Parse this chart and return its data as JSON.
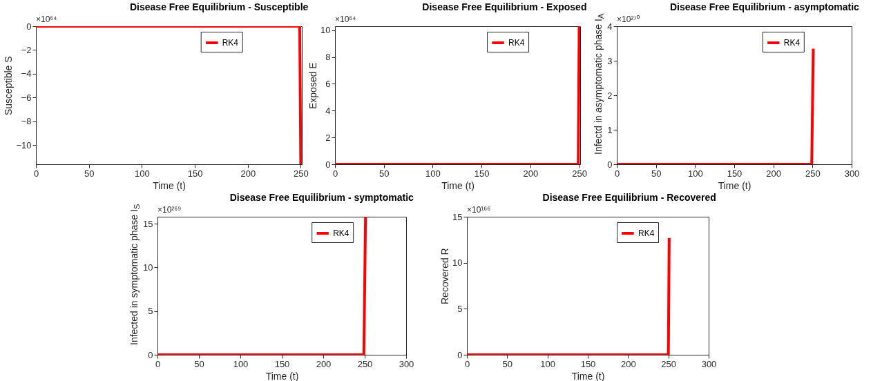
{
  "chart_data": [
    {
      "type": "line",
      "title": "Disease Free Equilibrium - Susceptible",
      "xlabel": "Time (t)",
      "ylabel": "Susceptible S",
      "annotations": [
        "×10⁶⁴"
      ],
      "x": [
        0,
        249,
        250
      ],
      "series": [
        {
          "name": "RK4",
          "color": "#ff0000",
          "values": [
            0,
            0,
            -11.6
          ]
        }
      ],
      "xlim": [
        0,
        251
      ],
      "xticks": [
        0,
        50,
        100,
        150,
        200,
        250
      ],
      "ylim": [
        -11.6,
        0
      ],
      "yticks": [
        -10,
        -8,
        -6,
        -4,
        -2,
        0
      ],
      "legend": "top right"
    },
    {
      "type": "line",
      "title": "Disease Free Equilibrium - Exposed",
      "xlabel": "Time (t)",
      "ylabel": "Exposed E",
      "annotations": [
        "×10⁶⁴"
      ],
      "x": [
        0,
        249,
        250
      ],
      "series": [
        {
          "name": "RK4",
          "color": "#ff0000",
          "values": [
            0,
            0,
            10.3
          ]
        }
      ],
      "xlim": [
        0,
        251
      ],
      "xticks": [
        0,
        50,
        100,
        150,
        200,
        250
      ],
      "ylim": [
        0,
        10.3
      ],
      "yticks": [
        0,
        2,
        4,
        6,
        8,
        10
      ],
      "legend": "top right"
    },
    {
      "type": "line",
      "title": "Disease Free Equilibrium - asymptomatic",
      "xlabel": "Time (t)",
      "ylabel": "Infectd in asymptomatic phase I$_{A}$",
      "annotations": [
        "×10²⁷⁰"
      ],
      "x": [
        0,
        249,
        251
      ],
      "series": [
        {
          "name": "RK4",
          "color": "#ff0000",
          "values": [
            0,
            0,
            3.35
          ]
        }
      ],
      "xlim": [
        0,
        300
      ],
      "xticks": [
        0,
        50,
        100,
        150,
        200,
        250,
        300
      ],
      "ylim": [
        0,
        4
      ],
      "yticks": [
        0,
        1,
        2,
        3,
        4
      ],
      "legend": "top right"
    },
    {
      "type": "line",
      "title": "Disease Free Equilibrium - symptomatic",
      "xlabel": "Time (t)",
      "ylabel": "Infected in symptomatic phase I$_{S}$",
      "annotations": [
        "×10²⁶⁹"
      ],
      "x": [
        0,
        249,
        251
      ],
      "series": [
        {
          "name": "RK4",
          "color": "#ff0000",
          "values": [
            0,
            0,
            15.8
          ]
        }
      ],
      "xlim": [
        0,
        300
      ],
      "xticks": [
        0,
        50,
        100,
        150,
        200,
        250,
        300
      ],
      "ylim": [
        0,
        15.8
      ],
      "yticks": [
        0,
        5,
        10,
        15
      ],
      "legend": "top right"
    },
    {
      "type": "line",
      "title": "Disease Free Equilibrium - Recovered",
      "xlabel": "Time (t)",
      "ylabel": "Recovered R",
      "annotations": [
        "×10¹⁶⁶"
      ],
      "x": [
        0,
        250,
        251
      ],
      "series": [
        {
          "name": "RK4",
          "color": "#ff0000",
          "values": [
            0,
            0,
            12.7
          ]
        }
      ],
      "xlim": [
        0,
        300
      ],
      "xticks": [
        0,
        50,
        100,
        150,
        200,
        250,
        300
      ],
      "ylim": [
        0,
        15
      ],
      "yticks": [
        0,
        5,
        10,
        15
      ],
      "legend": "top right"
    }
  ]
}
